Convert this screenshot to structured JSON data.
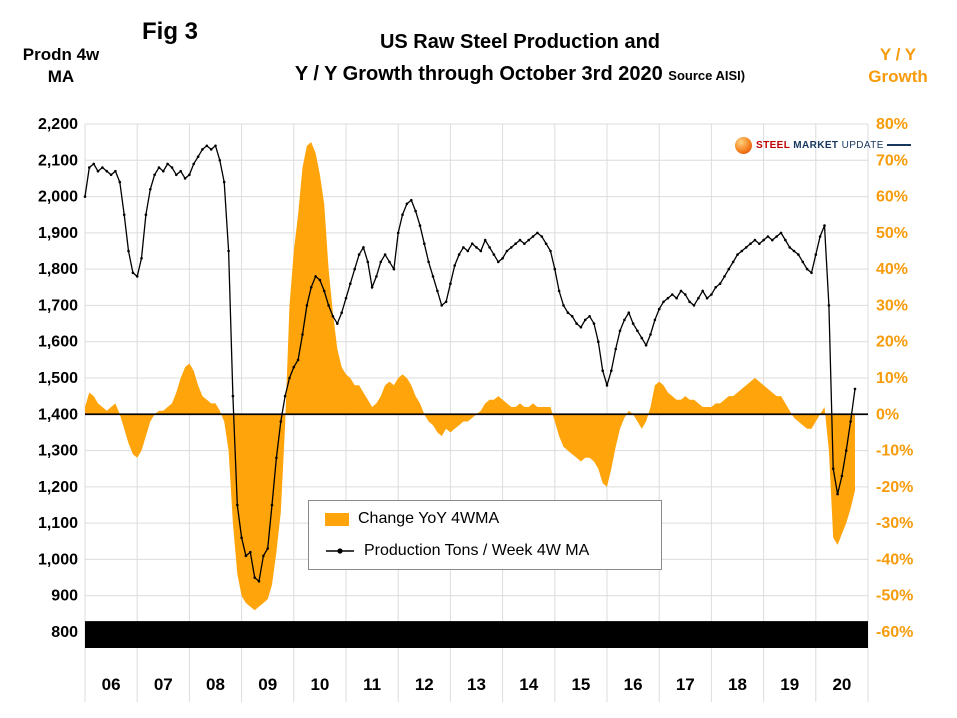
{
  "header": {
    "fig_label": "Fig 3",
    "title_line1": "US Raw Steel Production and",
    "title_line2": "Y / Y Growth through October 3rd 2020",
    "source": "Source AISI)"
  },
  "axes": {
    "left_title_line1": "Prodn 4w",
    "left_title_line2": "MA",
    "right_title_line1": "Y / Y",
    "right_title_line2": "Growth"
  },
  "legend": {
    "area_label": "Change YoY 4WMA",
    "line_label": "Production Tons / Week 4W MA"
  },
  "logo": {
    "word1": "STEEL",
    "word2": "MARKET",
    "word3": "UPDATE"
  },
  "colors": {
    "accent_orange": "#FFA40B",
    "right_axis_orange": "#F79B0B",
    "line_black": "#000000",
    "grid_gray": "#DCDCDC"
  },
  "chart_data": {
    "type": "line",
    "title": "US Raw Steel Production and Y / Y Growth through October 3rd 2020",
    "x_start_year": 2006,
    "x_interval_months": 1,
    "x_axis": {
      "range_years": [
        2006,
        2021
      ],
      "year_labels": [
        "06",
        "07",
        "08",
        "09",
        "10",
        "11",
        "12",
        "13",
        "14",
        "15",
        "16",
        "17",
        "18",
        "19",
        "20"
      ]
    },
    "left_axis": {
      "title": "Prodn 4w MA",
      "min": 800,
      "max": 2200,
      "step": 100,
      "tick_labels": [
        "2,200",
        "2,100",
        "2,000",
        "1,900",
        "1,800",
        "1,700",
        "1,600",
        "1,500",
        "1,400",
        "1,300",
        "1,200",
        "1,100",
        "1,000",
        "900",
        "800"
      ]
    },
    "right_axis": {
      "title": "Y / Y Growth",
      "min": -60,
      "max": 80,
      "step": 10,
      "zero_maps_to_left": 1400,
      "tick_labels": [
        "80%",
        "70%",
        "60%",
        "50%",
        "40%",
        "30%",
        "20%",
        "10%",
        "0%",
        "-10%",
        "-20%",
        "-30%",
        "-40%",
        "-50%",
        "-60%"
      ]
    },
    "grid": true,
    "legend_position": "bottom-center",
    "series": [
      {
        "name": "Production Tons / Week 4W MA",
        "type": "line",
        "axis": "left",
        "color": "#000000",
        "values": [
          2000,
          2080,
          2090,
          2070,
          2080,
          2070,
          2060,
          2070,
          2040,
          1950,
          1850,
          1790,
          1780,
          1830,
          1950,
          2020,
          2060,
          2080,
          2070,
          2090,
          2080,
          2060,
          2070,
          2050,
          2060,
          2090,
          2110,
          2130,
          2140,
          2130,
          2140,
          2100,
          2040,
          1850,
          1450,
          1150,
          1060,
          1010,
          1020,
          950,
          940,
          1010,
          1030,
          1150,
          1280,
          1380,
          1450,
          1500,
          1530,
          1550,
          1620,
          1700,
          1750,
          1780,
          1770,
          1740,
          1700,
          1670,
          1650,
          1680,
          1720,
          1760,
          1800,
          1840,
          1860,
          1820,
          1750,
          1780,
          1820,
          1840,
          1820,
          1800,
          1900,
          1950,
          1980,
          1990,
          1960,
          1920,
          1870,
          1820,
          1780,
          1740,
          1700,
          1710,
          1760,
          1810,
          1840,
          1860,
          1850,
          1870,
          1860,
          1850,
          1880,
          1860,
          1840,
          1820,
          1830,
          1850,
          1860,
          1870,
          1880,
          1870,
          1880,
          1890,
          1900,
          1890,
          1870,
          1850,
          1800,
          1740,
          1700,
          1680,
          1670,
          1650,
          1640,
          1660,
          1670,
          1650,
          1600,
          1520,
          1480,
          1520,
          1580,
          1630,
          1660,
          1680,
          1650,
          1630,
          1610,
          1590,
          1620,
          1660,
          1690,
          1710,
          1720,
          1730,
          1720,
          1740,
          1730,
          1710,
          1700,
          1720,
          1740,
          1720,
          1730,
          1750,
          1760,
          1780,
          1800,
          1820,
          1840,
          1850,
          1860,
          1870,
          1880,
          1870,
          1880,
          1890,
          1880,
          1890,
          1900,
          1880,
          1860,
          1850,
          1840,
          1820,
          1800,
          1790,
          1840,
          1890,
          1920,
          1700,
          1250,
          1180,
          1230,
          1300,
          1380,
          1470
        ]
      },
      {
        "name": "Change YoY 4WMA",
        "type": "area",
        "axis": "right",
        "color": "#FFA40B",
        "values": [
          2,
          6,
          5,
          3,
          2,
          1,
          2,
          3,
          0,
          -4,
          -8,
          -11,
          -12,
          -10,
          -6,
          -2,
          0,
          1,
          1,
          2,
          3,
          6,
          10,
          13,
          14,
          12,
          8,
          5,
          4,
          3,
          3,
          1,
          -2,
          -10,
          -30,
          -44,
          -50,
          -52,
          -53,
          -54,
          -53,
          -52,
          -51,
          -47,
          -38,
          -27,
          -3,
          30,
          45,
          55,
          68,
          74,
          75,
          72,
          66,
          58,
          40,
          28,
          18,
          13,
          11,
          10,
          8,
          8,
          6,
          4,
          2,
          3,
          5,
          8,
          9,
          8,
          10,
          11,
          10,
          8,
          5,
          3,
          0,
          -2,
          -3,
          -5,
          -6,
          -4,
          -5,
          -4,
          -3,
          -2,
          -2,
          -1,
          0,
          1,
          3,
          4,
          4,
          5,
          4,
          3,
          2,
          2,
          3,
          2,
          2,
          3,
          2,
          2,
          2,
          2,
          -2,
          -6,
          -9,
          -10,
          -11,
          -12,
          -13,
          -12,
          -12,
          -13,
          -15,
          -19,
          -20,
          -15,
          -9,
          -4,
          -1,
          1,
          0,
          -2,
          -4,
          -2,
          2,
          8,
          9,
          8,
          6,
          5,
          4,
          4,
          5,
          4,
          4,
          3,
          2,
          2,
          2,
          3,
          3,
          4,
          5,
          5,
          6,
          7,
          8,
          9,
          10,
          9,
          8,
          7,
          6,
          5,
          5,
          3,
          1,
          -1,
          -2,
          -3,
          -4,
          -4,
          -2,
          0,
          2,
          -10,
          -34,
          -36,
          -33,
          -30,
          -26,
          -21
        ]
      }
    ]
  }
}
